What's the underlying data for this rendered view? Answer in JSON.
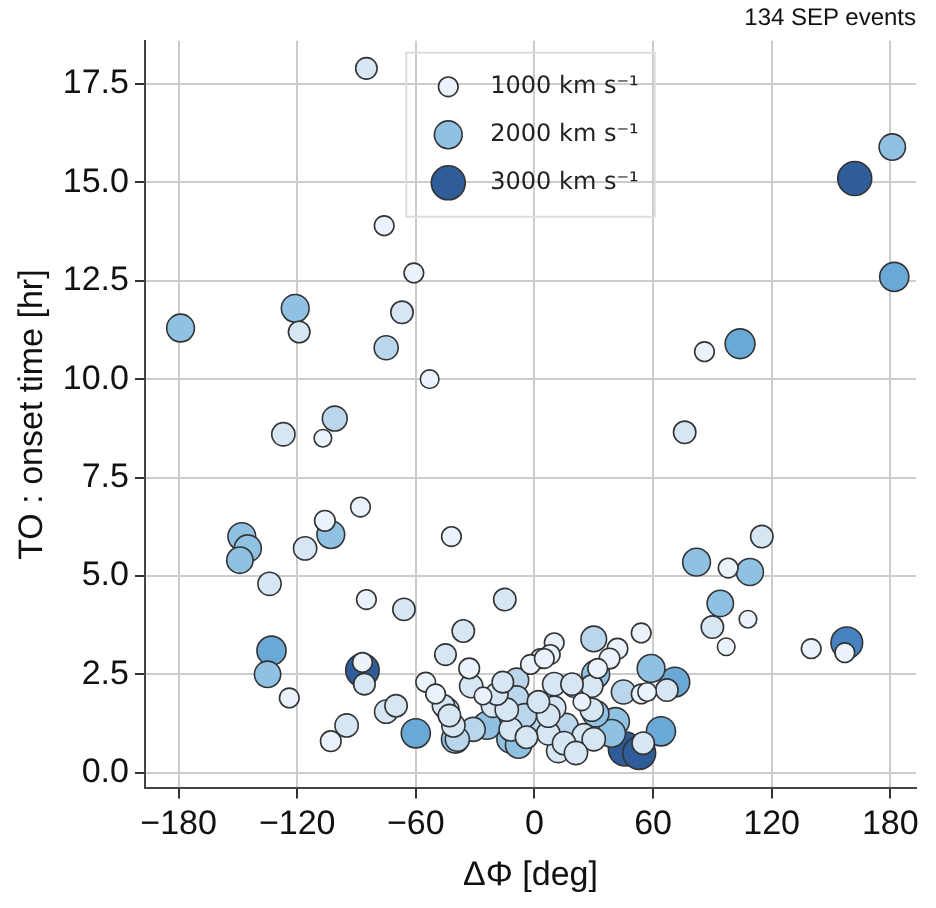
{
  "chart_data": {
    "type": "bubble",
    "title": "134 SEP events",
    "xlabel": "ΔΦ [deg]",
    "ylabel": "TO : onset time [hr]",
    "x": [
      -85,
      -76,
      -61,
      -67,
      -75,
      -121,
      -119,
      -179,
      -53,
      181,
      162,
      182,
      104,
      86,
      -127,
      -101,
      -107,
      -88,
      -106,
      -103,
      -116,
      -148,
      -145,
      -149,
      -42,
      -134,
      -85,
      -66,
      -15,
      -133,
      -135,
      -124,
      -87,
      -87,
      -86,
      -95,
      -103,
      -75,
      -70,
      -60,
      -55,
      -45,
      -36,
      -33,
      -32,
      -50,
      -44,
      -41,
      -40,
      -31,
      76,
      115,
      82,
      98,
      109,
      94,
      90,
      108,
      97,
      140,
      158,
      157,
      30,
      54,
      42,
      10,
      59,
      71,
      45,
      67,
      57,
      64,
      46,
      55,
      41,
      31,
      20,
      29,
      -9,
      -9,
      3,
      8,
      32,
      10,
      -12,
      -8,
      12,
      0,
      7,
      25,
      30,
      -46,
      -43,
      -39,
      -24,
      -21,
      -19,
      -26,
      -14,
      -12,
      -5,
      -2,
      5,
      10,
      19,
      7,
      15,
      21,
      38,
      31,
      29,
      24,
      39,
      53,
      54,
      -4,
      16,
      -16,
      2
    ],
    "values": [
      17.9,
      13.9,
      12.7,
      11.7,
      10.8,
      11.8,
      11.2,
      11.3,
      10.0,
      15.9,
      15.1,
      12.6,
      10.9,
      10.7,
      8.6,
      9.0,
      8.5,
      6.75,
      6.4,
      6.05,
      5.7,
      6.0,
      5.7,
      5.4,
      6.0,
      4.8,
      4.4,
      4.15,
      4.4,
      3.1,
      2.5,
      1.9,
      2.6,
      2.8,
      2.25,
      1.2,
      0.8,
      1.55,
      1.7,
      1.0,
      2.3,
      3.0,
      3.6,
      2.65,
      2.2,
      2.0,
      1.6,
      1.2,
      0.85,
      1.1,
      8.65,
      6.0,
      5.35,
      5.2,
      5.1,
      4.3,
      3.7,
      3.9,
      3.2,
      3.15,
      3.3,
      3.05,
      3.4,
      3.55,
      3.15,
      3.3,
      2.65,
      2.3,
      2.05,
      2.1,
      2.05,
      1.05,
      0.6,
      0.75,
      1.3,
      1.5,
      2.2,
      2.2,
      2.35,
      1.9,
      2.9,
      3.0,
      2.65,
      1.65,
      1.1,
      0.7,
      0.55,
      1.15,
      1.0,
      0.95,
      0.85,
      1.7,
      1.45,
      0.85,
      1.2,
      1.7,
      2.0,
      1.95,
      1.6,
      0.85,
      1.45,
      2.75,
      2.9,
      2.25,
      2.25,
      1.45,
      0.75,
      0.5,
      2.9,
      2.5,
      1.6,
      1.8,
      1.0,
      0.5,
      2.0,
      0.9,
      1.2,
      2.3,
      1.8
    ],
    "sizes": [
      1200,
      1000,
      1000,
      1300,
      1500,
      2000,
      1200,
      2000,
      900,
      1800,
      3000,
      2200,
      2300,
      1000,
      1400,
      1600,
      800,
      1000,
      1100,
      2000,
      1400,
      2000,
      1900,
      1800,
      1000,
      1400,
      1000,
      1300,
      1300,
      2200,
      1800,
      1000,
      2900,
      1000,
      1200,
      1400,
      1100,
      1400,
      1300,
      2200,
      1000,
      1200,
      1300,
      1100,
      1400,
      1000,
      1400,
      1400,
      2000,
      1500,
      1300,
      1300,
      2000,
      1000,
      1900,
      1800,
      1300,
      800,
      800,
      1000,
      2600,
      1000,
      1700,
      1000,
      1100,
      1000,
      2000,
      2300,
      1500,
      1300,
      900,
      2200,
      3000,
      1300,
      2000,
      1800,
      1300,
      1300,
      1500,
      1500,
      1000,
      1000,
      1000,
      1400,
      1400,
      1800,
      1400,
      1500,
      1400,
      1400,
      1400,
      1300,
      1300,
      1500,
      2000,
      1400,
      1300,
      800,
      1400,
      2000,
      1500,
      1000,
      1000,
      1400,
      1300,
      1400,
      1400,
      1400,
      1100,
      2000,
      1400,
      800,
      2000,
      2800,
      1000,
      1300,
      1500,
      1200,
      1300
    ],
    "size_legend": [
      {
        "value": 1000,
        "label": "1000 km s⁻¹"
      },
      {
        "value": 2000,
        "label": "2000 km s⁻¹"
      },
      {
        "value": 3000,
        "label": "3000 km s⁻¹"
      }
    ],
    "colors": [
      "#d6e6f4",
      "#eaf2fb",
      "#eaf2fb",
      "#d6e6f4",
      "#b9d6ec",
      "#8fc1e2",
      "#d6e6f4",
      "#8fc1e2",
      "#eaf2fb",
      "#8fc1e2",
      "#2f5d9a",
      "#6aa9d6",
      "#6aa9d6",
      "#eaf2fb",
      "#d6e6f4",
      "#b9d6ec",
      "#eaf2fb",
      "#eaf2fb",
      "#eaf2fb",
      "#8fc1e2",
      "#d6e6f4",
      "#8fc1e2",
      "#8fc1e2",
      "#8fc1e2",
      "#eaf2fb",
      "#d6e6f4",
      "#eaf2fb",
      "#d6e6f4",
      "#d6e6f4",
      "#6aa9d6",
      "#8fc1e2",
      "#eaf2fb",
      "#2f5d9a",
      "#eaf2fb",
      "#d6e6f4",
      "#d6e6f4",
      "#eaf2fb",
      "#d6e6f4",
      "#d6e6f4",
      "#6aa9d6",
      "#eaf2fb",
      "#d6e6f4",
      "#d6e6f4",
      "#eaf2fb",
      "#d6e6f4",
      "#eaf2fb",
      "#d6e6f4",
      "#d6e6f4",
      "#8fc1e2",
      "#b9d6ec",
      "#d6e6f4",
      "#d6e6f4",
      "#8fc1e2",
      "#eaf2fb",
      "#8fc1e2",
      "#8fc1e2",
      "#d6e6f4",
      "#eaf2fb",
      "#eaf2fb",
      "#eaf2fb",
      "#4682c0",
      "#eaf2fb",
      "#b9d6ec",
      "#eaf2fb",
      "#eaf2fb",
      "#eaf2fb",
      "#8fc1e2",
      "#6aa9d6",
      "#b9d6ec",
      "#d6e6f4",
      "#eaf2fb",
      "#6aa9d6",
      "#2f5d9a",
      "#d6e6f4",
      "#8fc1e2",
      "#8fc1e2",
      "#d6e6f4",
      "#d6e6f4",
      "#b9d6ec",
      "#b9d6ec",
      "#eaf2fb",
      "#eaf2fb",
      "#eaf2fb",
      "#d6e6f4",
      "#d6e6f4",
      "#8fc1e2",
      "#d6e6f4",
      "#b9d6ec",
      "#d6e6f4",
      "#d6e6f4",
      "#d6e6f4",
      "#d6e6f4",
      "#d6e6f4",
      "#b9d6ec",
      "#8fc1e2",
      "#d6e6f4",
      "#d6e6f4",
      "#eaf2fb",
      "#d6e6f4",
      "#8fc1e2",
      "#b9d6ec",
      "#eaf2fb",
      "#eaf2fb",
      "#d6e6f4",
      "#d6e6f4",
      "#d6e6f4",
      "#d6e6f4",
      "#d6e6f4",
      "#eaf2fb",
      "#8fc1e2",
      "#d6e6f4",
      "#eaf2fb",
      "#8fc1e2",
      "#2f5d9a",
      "#eaf2fb",
      "#d6e6f4",
      "#b9d6ec",
      "#d6e6f4",
      "#d6e6f4"
    ],
    "xlim": [
      -197,
      193
    ],
    "ylim": [
      -0.4,
      18.6
    ],
    "xticks": [
      {
        "value": -180,
        "label": "−180"
      },
      {
        "value": -120,
        "label": "−120"
      },
      {
        "value": -60,
        "label": "−60"
      },
      0,
      60,
      120,
      180
    ],
    "yticks": [
      {
        "value": 0,
        "label": "0.0"
      },
      {
        "value": 2.5,
        "label": "2.5"
      },
      {
        "value": 5,
        "label": "5.0"
      },
      {
        "value": 7.5,
        "label": "7.5"
      },
      {
        "value": 10,
        "label": "10.0"
      },
      {
        "value": 12.5,
        "label": "12.5"
      },
      {
        "value": 15,
        "label": "15.0"
      },
      {
        "value": 17.5,
        "label": "17.5"
      }
    ],
    "grid": true
  }
}
